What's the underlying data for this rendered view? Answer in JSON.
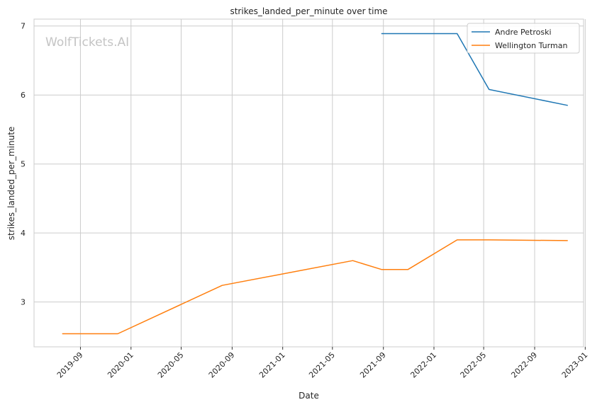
{
  "watermark": "WolfTickets.AI",
  "chart_data": {
    "type": "line",
    "title": "strikes_landed_per_minute over time",
    "xlabel": "Date",
    "ylabel": "strikes_landed_per_minute",
    "x_axis_type": "date",
    "xlim": [
      "2019-05-12",
      "2022-12-28"
    ],
    "ylim": [
      2.35,
      7.1
    ],
    "x_ticks": [
      "2019-09",
      "2020-01",
      "2020-05",
      "2020-09",
      "2021-01",
      "2021-05",
      "2021-09",
      "2022-01",
      "2022-05",
      "2022-09",
      "2023-01"
    ],
    "y_ticks": [
      3,
      4,
      5,
      6,
      7
    ],
    "grid": true,
    "legend_position": "top-right",
    "series": [
      {
        "name": "Andre Petroski",
        "color": "#1f77b4",
        "points": [
          {
            "x": "2021-08-28",
            "y": 6.89
          },
          {
            "x": "2022-02-26",
            "y": 6.89
          },
          {
            "x": "2022-05-14",
            "y": 6.08
          },
          {
            "x": "2022-11-19",
            "y": 5.85
          }
        ]
      },
      {
        "name": "Wellington Turman",
        "color": "#ff7f0e",
        "points": [
          {
            "x": "2019-07-20",
            "y": 2.54
          },
          {
            "x": "2019-11-30",
            "y": 2.54
          },
          {
            "x": "2020-08-08",
            "y": 3.24
          },
          {
            "x": "2021-06-19",
            "y": 3.6
          },
          {
            "x": "2021-08-28",
            "y": 3.47
          },
          {
            "x": "2021-10-30",
            "y": 3.47
          },
          {
            "x": "2022-02-26",
            "y": 3.9
          },
          {
            "x": "2022-05-14",
            "y": 3.9
          },
          {
            "x": "2022-11-19",
            "y": 3.89
          }
        ]
      }
    ]
  }
}
